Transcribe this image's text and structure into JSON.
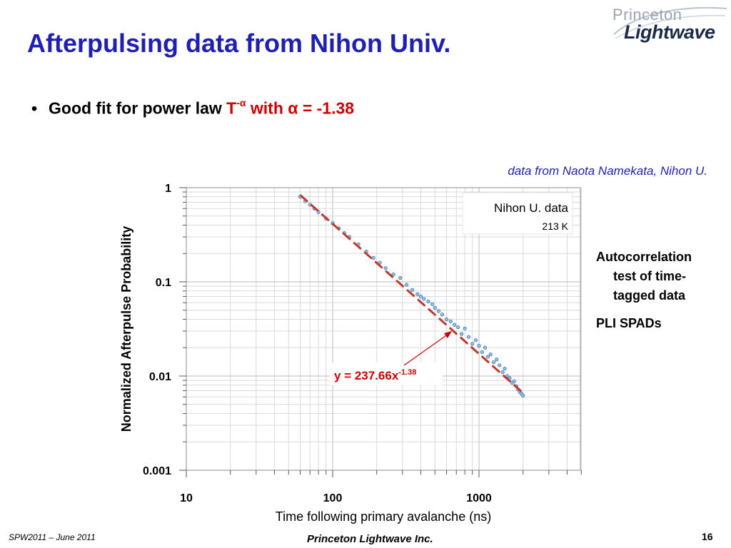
{
  "slide": {
    "title": "Afterpulsing data from Nihon Univ.",
    "bullet": {
      "text": "Good fit for power law ",
      "formula_base": "T",
      "formula_exp": "-α",
      "formula_rest": " with α = -1.38"
    },
    "credit": "data from Naota Namekata, Nihon U.",
    "side_note": {
      "line1": "Autocorrelation",
      "line2": "test of time-",
      "line3": "tagged data",
      "line4": "PLI SPADs"
    },
    "footer_left": "SPW2011 – June 2011",
    "footer_center": "Princeton Lightwave Inc.",
    "page_number": "16",
    "logo": {
      "top": "Princeton",
      "bottom": "Lightwave"
    }
  },
  "chart_data": {
    "type": "scatter",
    "xlabel": "Time following primary avalanche (ns)",
    "ylabel": "Normalized Afterpulse Probability",
    "x_scale": "log",
    "y_scale": "log",
    "xlim": [
      10,
      5000
    ],
    "ylim": [
      0.001,
      1
    ],
    "x_ticks": [
      "10",
      "100",
      "1000"
    ],
    "y_ticks": [
      "1",
      "0.1",
      "0.01",
      "0.001"
    ],
    "grid": true,
    "legend_box": {
      "line1": "Nihon U. data",
      "line2": "213 K"
    },
    "fit": {
      "label_main": "y = 237.66x",
      "label_exp": "-1.38",
      "coefficient": 237.66,
      "exponent": -1.38,
      "x_range": [
        60,
        2000
      ]
    },
    "series": [
      {
        "x": [
          60,
          65,
          70,
          75,
          80,
          90,
          100,
          110,
          120,
          130,
          150,
          170,
          190,
          210,
          230,
          260,
          290,
          320,
          350,
          380,
          400,
          420,
          450,
          480,
          500,
          530,
          560,
          600,
          640,
          680,
          720,
          760,
          800,
          850,
          900,
          950,
          1000,
          1050,
          1100,
          1150,
          1200,
          1260,
          1320,
          1380,
          1450,
          1500,
          1560,
          1620,
          1680,
          1740,
          1800,
          1850,
          1900,
          1950,
          2000
        ],
        "y": [
          0.8,
          0.72,
          0.66,
          0.6,
          0.55,
          0.47,
          0.42,
          0.37,
          0.33,
          0.3,
          0.25,
          0.21,
          0.18,
          0.16,
          0.14,
          0.12,
          0.11,
          0.093,
          0.082,
          0.074,
          0.07,
          0.066,
          0.062,
          0.058,
          0.053,
          0.049,
          0.045,
          0.04,
          0.038,
          0.035,
          0.033,
          0.028,
          0.032,
          0.026,
          0.022,
          0.024,
          0.021,
          0.018,
          0.02,
          0.016,
          0.017,
          0.014,
          0.015,
          0.013,
          0.011,
          0.012,
          0.01,
          0.0095,
          0.0085,
          0.0088,
          0.0078,
          0.0072,
          0.0068,
          0.0065,
          0.0062
        ]
      }
    ]
  }
}
